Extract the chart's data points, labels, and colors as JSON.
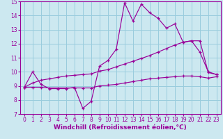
{
  "line1_x": [
    0,
    1,
    2,
    3,
    4,
    5,
    6,
    7,
    8,
    9,
    10,
    11,
    12,
    13,
    14,
    15,
    16,
    17,
    18,
    19,
    20,
    21,
    22,
    23
  ],
  "line1_y": [
    8.9,
    10.0,
    9.1,
    8.8,
    8.8,
    8.8,
    8.9,
    7.4,
    7.9,
    10.4,
    10.8,
    11.6,
    14.9,
    13.6,
    14.8,
    14.2,
    13.8,
    13.1,
    13.4,
    12.1,
    12.2,
    11.4,
    10.0,
    9.8
  ],
  "line2_x": [
    0,
    1,
    2,
    3,
    4,
    5,
    6,
    7,
    8,
    9,
    10,
    11,
    12,
    13,
    14,
    15,
    16,
    17,
    18,
    19,
    20,
    21,
    22,
    23
  ],
  "line2_y": [
    8.9,
    9.2,
    9.4,
    9.5,
    9.6,
    9.7,
    9.75,
    9.8,
    9.85,
    10.05,
    10.15,
    10.35,
    10.55,
    10.75,
    10.95,
    11.15,
    11.4,
    11.65,
    11.9,
    12.1,
    12.2,
    12.2,
    9.95,
    9.8
  ],
  "line3_x": [
    0,
    1,
    2,
    3,
    4,
    5,
    6,
    7,
    8,
    9,
    10,
    11,
    12,
    13,
    14,
    15,
    16,
    17,
    18,
    19,
    20,
    21,
    22,
    23
  ],
  "line3_y": [
    8.9,
    8.9,
    8.9,
    8.85,
    8.85,
    8.85,
    8.85,
    8.85,
    8.85,
    9.0,
    9.05,
    9.1,
    9.2,
    9.3,
    9.4,
    9.5,
    9.55,
    9.6,
    9.65,
    9.7,
    9.7,
    9.65,
    9.55,
    9.65
  ],
  "line_color": "#990099",
  "bg_color": "#cce8f0",
  "grid_color": "#99ccdd",
  "xlabel": "Windchill (Refroidissement éolien,°C)",
  "xlabel_fontsize": 6.5,
  "tick_fontsize": 5.5,
  "xlim": [
    -0.5,
    23.5
  ],
  "ylim": [
    7,
    15
  ],
  "yticks": [
    7,
    8,
    9,
    10,
    11,
    12,
    13,
    14,
    15
  ],
  "xticks": [
    0,
    1,
    2,
    3,
    4,
    5,
    6,
    7,
    8,
    9,
    10,
    11,
    12,
    13,
    14,
    15,
    16,
    17,
    18,
    19,
    20,
    21,
    22,
    23
  ]
}
